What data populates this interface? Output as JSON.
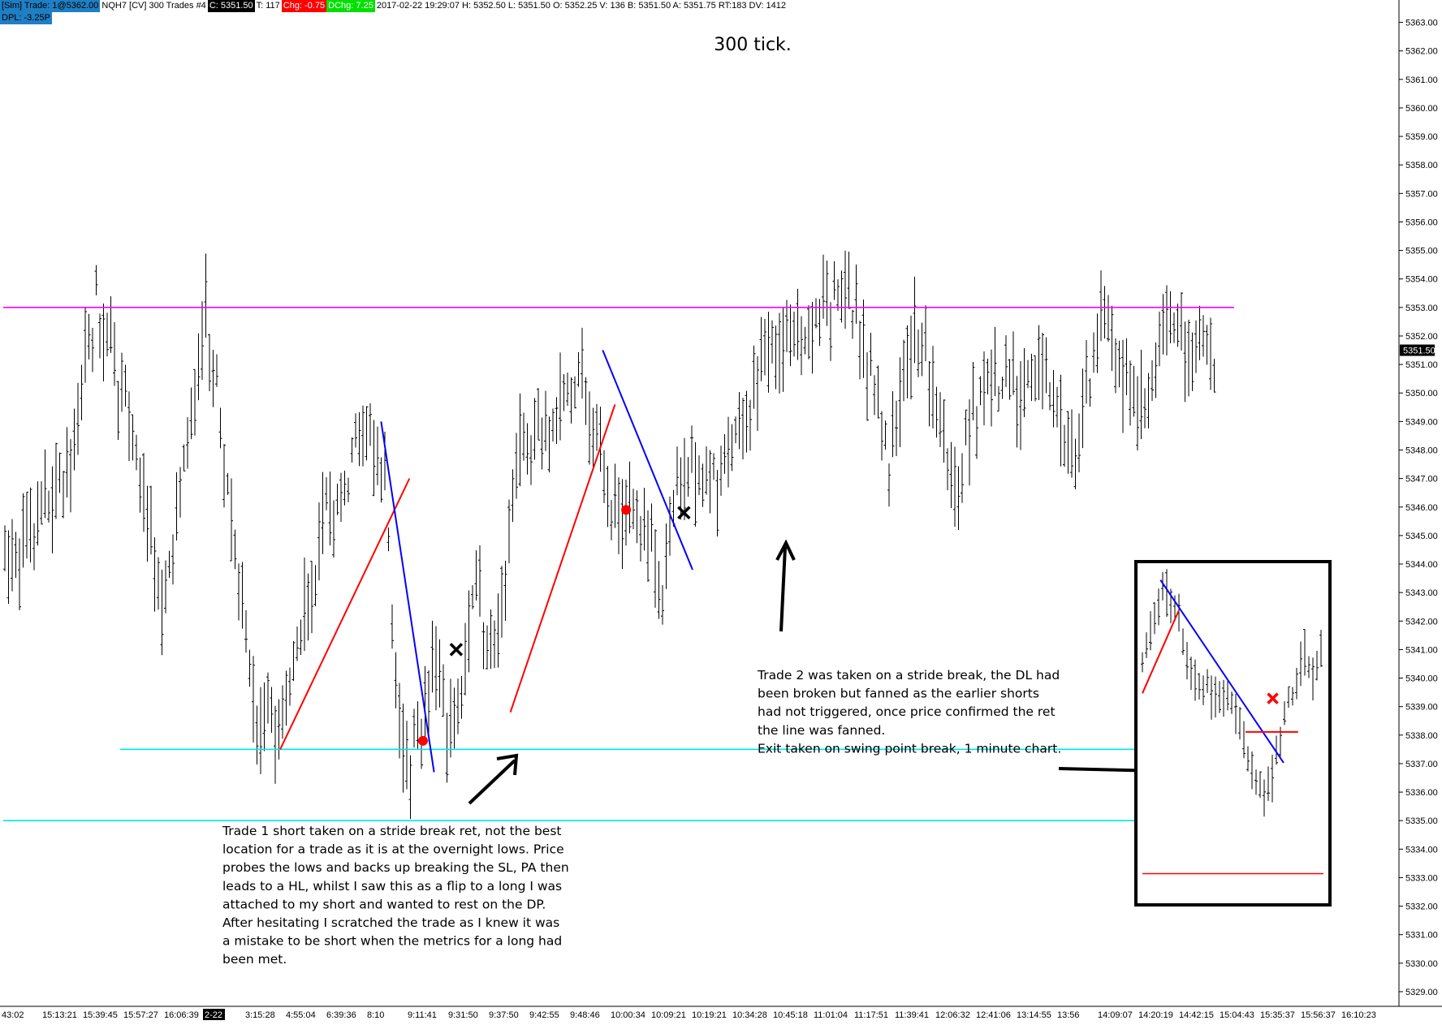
{
  "header": {
    "sim_label": "[Sim]  Trade: 1@5362.00",
    "instrument": "NQH7 [CV]  300 Trades  #4",
    "close_label": "C: 5351.50",
    "ticks_label": "T: 117",
    "chg_label": "Chg: -0.75",
    "dchg_label": "DChg: 7.25",
    "info_label": "2017-02-22 19:29:07 H: 5352.50 L: 5351.50 O: 5352.25 V: 136 B: 5351.50 A: 5351.75 RT:183 DV: 1412",
    "dpl_label": "DPL: -3.25P"
  },
  "colors": {
    "magenta_line": "#ff00ff",
    "cyan_line": "#00e5e5",
    "trendline_red": "#ff0000",
    "trendline_blue": "#0000ff",
    "sim_bg": "#1f7fc4",
    "chg_bg": "#ff0000",
    "dchg_bg": "#00e000"
  },
  "chart_data": {
    "type": "ohlc",
    "title": "300 tick.",
    "ylim": [
      5328.6,
      5363.5
    ],
    "y_ticks": [
      "5329.00",
      "5330.00",
      "5331.00",
      "5332.00",
      "5333.00",
      "5334.00",
      "5335.00",
      "5336.00",
      "5337.00",
      "5338.00",
      "5339.00",
      "5340.00",
      "5341.00",
      "5342.00",
      "5343.00",
      "5344.00",
      "5345.00",
      "5346.00",
      "5347.00",
      "5348.00",
      "5349.00",
      "5350.00",
      "5351.00",
      "5352.00",
      "5353.00",
      "5354.00",
      "5355.00",
      "5356.00",
      "5357.00",
      "5358.00",
      "5359.00",
      "5360.00",
      "5361.00",
      "5362.00",
      "5363.00"
    ],
    "last_price_label": "5351.50",
    "x_ticks": [
      "43:02",
      "15:13:21",
      "15:39:45",
      "15:57:27",
      "16:06:39",
      "2-22",
      "3:15:28",
      "4:55:04",
      "6:39:36",
      "8:10",
      "9:11:41",
      "9:31:50",
      "9:37:50",
      "9:42:55",
      "9:48:46",
      "10:00:34",
      "10:09:21",
      "10:19:21",
      "10:34:28",
      "10:45:18",
      "11:01:04",
      "11:17:51",
      "11:39:41",
      "12:06:32",
      "12:41:06",
      "13:14:55",
      "13:56",
      "14:09:07",
      "14:20:19",
      "14:42:15",
      "15:04:43",
      "15:35:37",
      "15:56:37",
      "16:10:23"
    ],
    "highlighted_x_tick": "2-22",
    "price_path": [
      {
        "x": 0,
        "y": 5343.9
      },
      {
        "x": 0.05,
        "y": 5346.8
      },
      {
        "x": 0.075,
        "y": 5353.1
      },
      {
        "x": 0.1,
        "y": 5349.8
      },
      {
        "x": 0.13,
        "y": 5342.2
      },
      {
        "x": 0.165,
        "y": 5352.9
      },
      {
        "x": 0.205,
        "y": 5338.8
      },
      {
        "x": 0.225,
        "y": 5337.8
      },
      {
        "x": 0.26,
        "y": 5345.2
      },
      {
        "x": 0.295,
        "y": 5348.6
      },
      {
        "x": 0.31,
        "y": 5347.2
      },
      {
        "x": 0.318,
        "y": 5339.6
      },
      {
        "x": 0.33,
        "y": 5337.2
      },
      {
        "x": 0.35,
        "y": 5340.2
      },
      {
        "x": 0.365,
        "y": 5338.0
      },
      {
        "x": 0.385,
        "y": 5343.2
      },
      {
        "x": 0.395,
        "y": 5339.8
      },
      {
        "x": 0.42,
        "y": 5347.8
      },
      {
        "x": 0.47,
        "y": 5350.6
      },
      {
        "x": 0.495,
        "y": 5346.2
      },
      {
        "x": 0.52,
        "y": 5345.6
      },
      {
        "x": 0.535,
        "y": 5342.8
      },
      {
        "x": 0.55,
        "y": 5347.6
      },
      {
        "x": 0.585,
        "y": 5347.0
      },
      {
        "x": 0.62,
        "y": 5351.3
      },
      {
        "x": 0.66,
        "y": 5352.4
      },
      {
        "x": 0.685,
        "y": 5353.8
      },
      {
        "x": 0.705,
        "y": 5350.2
      },
      {
        "x": 0.72,
        "y": 5347.4
      },
      {
        "x": 0.74,
        "y": 5352.6
      },
      {
        "x": 0.76,
        "y": 5349.4
      },
      {
        "x": 0.775,
        "y": 5346.6
      },
      {
        "x": 0.8,
        "y": 5351.2
      },
      {
        "x": 0.815,
        "y": 5350.2
      },
      {
        "x": 0.84,
        "y": 5350.6
      },
      {
        "x": 0.855,
        "y": 5349.4
      },
      {
        "x": 0.87,
        "y": 5347.6
      },
      {
        "x": 0.895,
        "y": 5352.8
      },
      {
        "x": 0.915,
        "y": 5350.4
      },
      {
        "x": 0.93,
        "y": 5348.8
      },
      {
        "x": 0.945,
        "y": 5352.4
      },
      {
        "x": 0.98,
        "y": 5351.5
      }
    ],
    "horizontal_lines": [
      {
        "name": "magenta",
        "price": 5353.0,
        "x_from": 0,
        "x_to": 1
      },
      {
        "name": "cyan-upper",
        "price": 5337.5,
        "x_from": 0.095,
        "x_to": 1
      },
      {
        "name": "cyan-lower",
        "price": 5335.0,
        "x_from": 0,
        "x_to": 1
      }
    ],
    "trendlines": [
      {
        "color": "red",
        "from": [
          0.225,
          5337.5
        ],
        "to": [
          0.33,
          5347.0
        ]
      },
      {
        "color": "blue",
        "from": [
          0.307,
          5349.0
        ],
        "to": [
          0.35,
          5336.7
        ]
      },
      {
        "color": "red",
        "from": [
          0.412,
          5338.8
        ],
        "to": [
          0.497,
          5349.6
        ]
      },
      {
        "color": "blue",
        "from": [
          0.487,
          5351.5
        ],
        "to": [
          0.56,
          5343.8
        ]
      }
    ],
    "markers": [
      {
        "type": "entry-dot",
        "x": 0.341,
        "y": 5337.8
      },
      {
        "type": "exit-x",
        "x": 0.368,
        "y": 5341.0
      },
      {
        "type": "entry-dot",
        "x": 0.506,
        "y": 5345.9
      },
      {
        "type": "exit-x",
        "x": 0.553,
        "y": 5345.8
      }
    ],
    "inset": {
      "price_path": [
        {
          "x": 0,
          "y": 5340.5
        },
        {
          "x": 0.12,
          "y": 5343.7
        },
        {
          "x": 0.3,
          "y": 5339.8
        },
        {
          "x": 0.5,
          "y": 5339.2
        },
        {
          "x": 0.62,
          "y": 5336.3
        },
        {
          "x": 0.7,
          "y": 5335.5
        },
        {
          "x": 0.8,
          "y": 5339.0
        },
        {
          "x": 0.88,
          "y": 5340.8
        },
        {
          "x": 0.95,
          "y": 5339.8
        },
        {
          "x": 1.0,
          "y": 5341.8
        }
      ]
    },
    "annotations": [
      {
        "id": "chart-title",
        "text": "300 tick."
      },
      {
        "id": "trade1",
        "lines": [
          "Trade 1 short taken on a stride break ret, not the best",
          "location for a trade as it is at the overnight lows.  Price",
          "probes the lows and backs up breaking the SL, PA then",
          "leads to a HL, whilst I saw this as a flip to a long I was",
          "attached to my short and wanted to rest on the DP.",
          "",
          "After hesitating I scratched the trade as I knew it was",
          "a mistake to be short when the metrics for a long had",
          "been met."
        ]
      },
      {
        "id": "trade2",
        "lines": [
          "Trade 2 was taken on a stride break, the DL had",
          "been broken but fanned as the earlier shorts",
          "had not triggered, once price confirmed the ret",
          "the line was fanned.",
          "",
          "Exit taken on swing point break, 1 minute chart."
        ]
      }
    ]
  }
}
